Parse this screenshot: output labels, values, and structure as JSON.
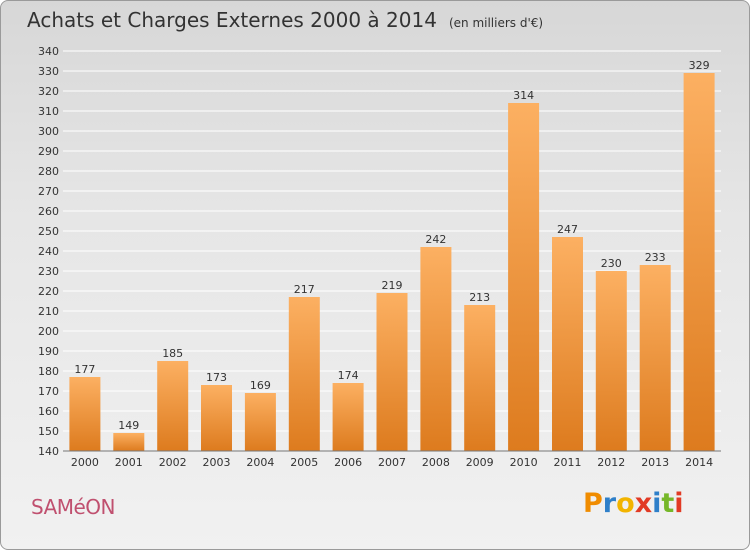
{
  "title": "Achats et Charges Externes 2000 à 2014",
  "subtitle": "(en milliers d'€)",
  "commune": "SAMéON",
  "brand": "Proxiti",
  "colors": {
    "bar_top": "#fcb062",
    "bar_bottom": "#dd7b1e",
    "grid": "#ffffff",
    "commune": "#c0506f",
    "brand_letters": [
      "#f08c00",
      "#2e7fc9",
      "#f2b400",
      "#e23a24",
      "#2e7fc9",
      "#76b729",
      "#e23a24"
    ]
  },
  "chart_data": {
    "type": "bar",
    "categories": [
      "2000",
      "2001",
      "2002",
      "2003",
      "2004",
      "2005",
      "2006",
      "2007",
      "2008",
      "2009",
      "2010",
      "2011",
      "2012",
      "2013",
      "2014"
    ],
    "values": [
      177,
      149,
      185,
      173,
      169,
      217,
      174,
      219,
      242,
      213,
      314,
      247,
      230,
      233,
      329
    ],
    "ylim": [
      140,
      340
    ],
    "ytick_step": 10,
    "grid": true,
    "legend": "none"
  }
}
